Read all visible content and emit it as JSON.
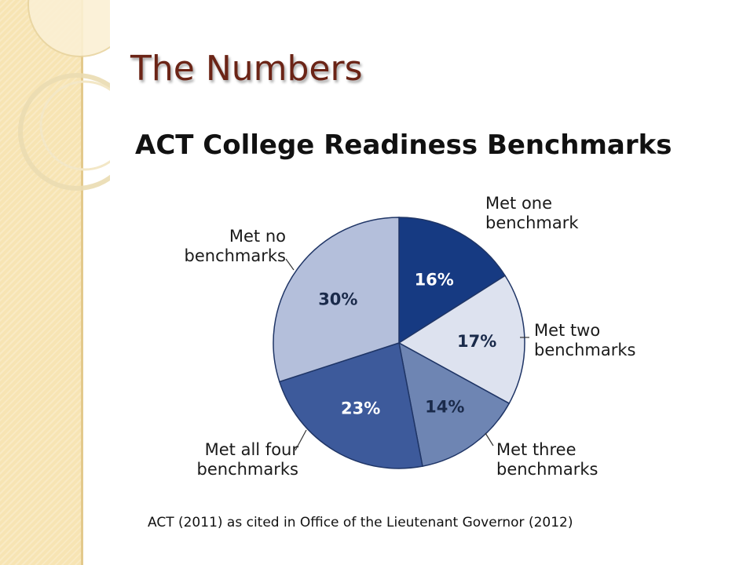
{
  "slide": {
    "title": "The Numbers",
    "subtitle": "ACT College Readiness Benchmarks",
    "citation": "ACT (2011) as cited in Office of the Lieutenant Governor (2012)"
  },
  "colors": {
    "band": "#f7e4b3",
    "title": "#6b2416"
  },
  "chart_data": {
    "type": "pie",
    "title": "",
    "start_at": "top, clockwise",
    "slices": [
      {
        "category": [
          "Met one",
          "benchmark"
        ],
        "value": 16,
        "label": "16%",
        "color": "#163a82",
        "label_color": "#ffffff"
      },
      {
        "category": [
          "Met two",
          "benchmarks"
        ],
        "value": 17,
        "label": "17%",
        "color": "#dde2ef",
        "label_color": "#1a2a4a"
      },
      {
        "category": [
          "Met three",
          "benchmarks"
        ],
        "value": 14,
        "label": "14%",
        "color": "#6e85b3",
        "label_color": "#1a2a4a"
      },
      {
        "category": [
          "Met all four",
          "benchmarks"
        ],
        "value": 23,
        "label": "23%",
        "color": "#3d5a9b",
        "label_color": "#ffffff"
      },
      {
        "category": [
          "Met no",
          "benchmarks"
        ],
        "value": 30,
        "label": "30%",
        "color": "#b4bfdb",
        "label_color": "#1a2a4a"
      }
    ]
  }
}
